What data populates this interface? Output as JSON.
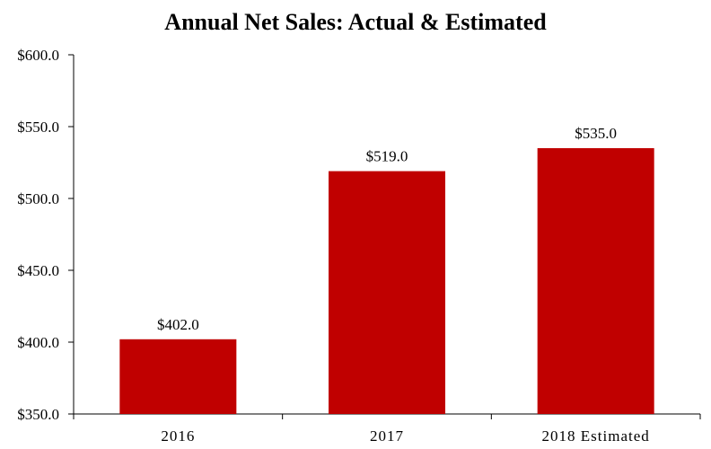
{
  "chart_data": {
    "type": "bar",
    "title": "Annual Net Sales: Actual & Estimated",
    "xlabel": "",
    "ylabel": "",
    "categories": [
      "2016",
      "2017",
      "2018 Estimated"
    ],
    "values": [
      402.0,
      519.0,
      535.0
    ],
    "data_labels": [
      "$402.0",
      "$519.0",
      "$535.0"
    ],
    "ylim": [
      350,
      600
    ],
    "yticks": [
      350,
      400,
      450,
      500,
      550,
      600
    ],
    "ytick_labels": [
      "$350.0",
      "$400.0",
      "$450.0",
      "$500.0",
      "$550.0",
      "$600.0"
    ],
    "bar_color": "#C00000",
    "grid": false,
    "legend": "none"
  }
}
